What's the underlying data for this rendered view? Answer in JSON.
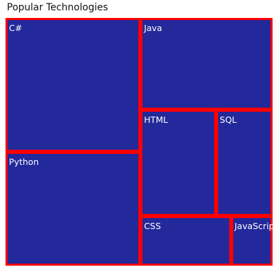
{
  "chart_data": {
    "type": "treemap",
    "title": "Popular Technologies",
    "colors": {
      "fill": "#23289a",
      "border": "#ff0000"
    },
    "items": [
      {
        "name": "C#",
        "value": 193
      },
      {
        "name": "Java",
        "value": 129
      },
      {
        "name": "Python",
        "value": 164
      },
      {
        "name": "HTML",
        "value": 86
      },
      {
        "name": "SQL",
        "value": 64
      },
      {
        "name": "CSS",
        "value": 48
      },
      {
        "name": "JavaScript",
        "value": 22
      }
    ]
  }
}
